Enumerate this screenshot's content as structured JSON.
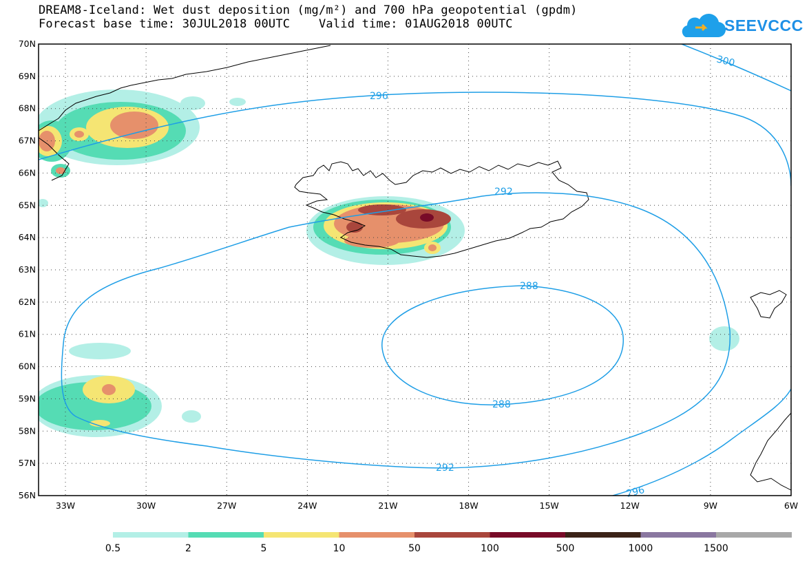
{
  "title": {
    "line1": "DREAM8-Iceland: Wet dust deposition (mg/m²) and 700 hPa geopotential (gpdm)",
    "line2": "Forecast base time: 30JUL2018 00UTC    Valid time: 01AUG2018 00UTC"
  },
  "logo": {
    "text": "SEEVCCC",
    "icon": "cloud-arrow-icon"
  },
  "map": {
    "lat_ticks": [
      "70N",
      "69N",
      "68N",
      "67N",
      "66N",
      "65N",
      "64N",
      "63N",
      "62N",
      "61N",
      "60N",
      "59N",
      "58N",
      "57N",
      "56N"
    ],
    "lon_ticks": [
      "33W",
      "30W",
      "27W",
      "24W",
      "21W",
      "18W",
      "15W",
      "12W",
      "9W",
      "6W"
    ],
    "lat_range": [
      56,
      70
    ],
    "lon_range": [
      -34,
      -6
    ],
    "grid": "dotted",
    "coastline_color": "#000000",
    "contour_color": "#1e9ee6"
  },
  "contours": [
    {
      "value": "300",
      "label": "300"
    },
    {
      "value": "296",
      "label": "296"
    },
    {
      "value": "292",
      "label": "292"
    },
    {
      "value": "288",
      "label": "288"
    }
  ],
  "legend": {
    "colors": [
      "#b3efe6",
      "#55dcb4",
      "#f5e573",
      "#e6906b",
      "#a9463c",
      "#780b28",
      "#3b2318",
      "#8a77a0",
      "#a8a8a8"
    ],
    "labels": [
      "0.5",
      "2",
      "5",
      "10",
      "50",
      "100",
      "500",
      "1000",
      "1500"
    ]
  }
}
